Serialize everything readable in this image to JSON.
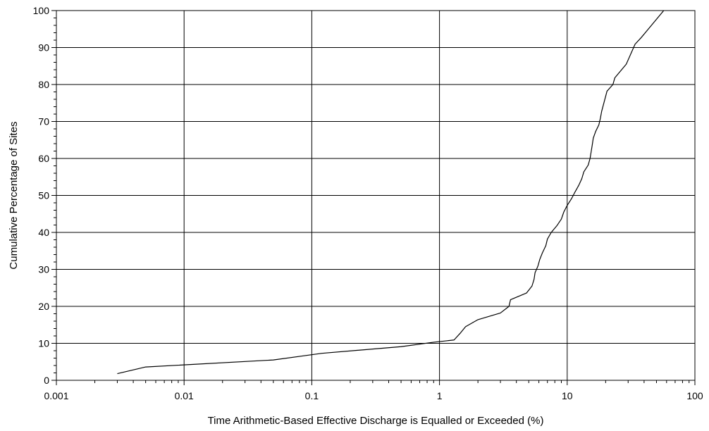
{
  "chart_data": {
    "type": "line",
    "xlabel": "Time Arithmetic-Based Effective Discharge is Equalled or Exceeded (%)",
    "ylabel": "Cumulative Percentage of Sites",
    "xscale": "log",
    "xlim": [
      0.001,
      100
    ],
    "ylim": [
      0,
      100
    ],
    "grid": true,
    "x_ticks": [
      0.001,
      0.01,
      0.1,
      1,
      10,
      100
    ],
    "x_tick_labels": [
      "0.001",
      "0.01",
      "0.1",
      "1",
      "10",
      "100"
    ],
    "y_ticks": [
      0,
      10,
      20,
      30,
      40,
      50,
      60,
      70,
      80,
      90,
      100
    ],
    "y_tick_labels": [
      "0",
      "10",
      "20",
      "30",
      "40",
      "50",
      "60",
      "70",
      "80",
      "90",
      "100"
    ],
    "series": [
      {
        "x": [
          0.003,
          0.005,
          0.05,
          0.12,
          0.5,
          0.9,
          1.3,
          1.45,
          1.6,
          2.0,
          3.0,
          3.5,
          3.6,
          4.8,
          5.3,
          5.5,
          5.6,
          5.9,
          6.1,
          6.4,
          6.8,
          7.0,
          7.5,
          8.3,
          9.0,
          9.4,
          10.0,
          10.8,
          11.5,
          12.3,
          13.0,
          13.5,
          14.6,
          15.1,
          15.4,
          15.7,
          16.0,
          16.7,
          17.7,
          18.2,
          18.6,
          20.5,
          22.8,
          23.6,
          29.0,
          34.0,
          38.0,
          42.0,
          57.0
        ],
        "y": [
          1.8,
          3.6,
          5.5,
          7.3,
          9.1,
          10.3,
          10.9,
          12.7,
          14.5,
          16.4,
          18.2,
          20.0,
          21.8,
          23.6,
          25.5,
          27.3,
          29.1,
          30.9,
          32.7,
          34.5,
          36.4,
          38.2,
          40.0,
          41.8,
          43.6,
          45.5,
          47.3,
          49.1,
          50.9,
          52.7,
          54.5,
          56.4,
          58.2,
          60.0,
          61.8,
          63.6,
          65.5,
          67.3,
          69.1,
          70.9,
          72.7,
          78.2,
          80.0,
          81.8,
          85.5,
          90.9,
          92.7,
          94.5,
          100.0
        ]
      }
    ]
  }
}
